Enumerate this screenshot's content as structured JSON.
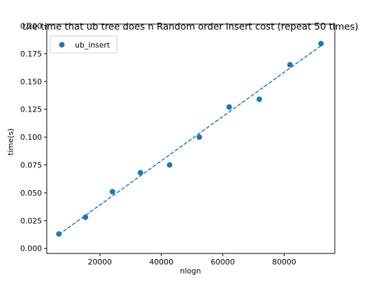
{
  "chart_data": {
    "type": "scatter",
    "title": "the time that ub tree does n Random order insert cost (repeat 50 times)",
    "xlabel": "nlogn",
    "ylabel": "time(s)",
    "xlim": [
      2700,
      96500
    ],
    "ylim": [
      -0.0045,
      0.2015
    ],
    "xticks": [
      20000,
      40000,
      60000,
      80000
    ],
    "xtick_labels": [
      "20000",
      "40000",
      "60000",
      "80000"
    ],
    "yticks": [
      0.0,
      0.025,
      0.05,
      0.075,
      0.1,
      0.125,
      0.15,
      0.175,
      0.2
    ],
    "ytick_labels": [
      "0.000",
      "0.025",
      "0.050",
      "0.075",
      "0.100",
      "0.125",
      "0.150",
      "0.175",
      "0.200"
    ],
    "grid": false,
    "legend": {
      "position": "top-left",
      "entries": [
        "ub_insert"
      ]
    },
    "series": [
      {
        "name": "ub_insert",
        "kind": "scatter",
        "color": "#1f77b4",
        "x": [
          6650,
          15300,
          24100,
          33200,
          42700,
          52400,
          62100,
          71900,
          81900,
          92000
        ],
        "y": [
          0.013,
          0.028,
          0.051,
          0.068,
          0.075,
          0.1,
          0.127,
          0.134,
          0.165,
          0.184
        ]
      }
    ],
    "fit_line": {
      "kind": "line",
      "style": "dashed",
      "color": "#1f77b4",
      "x": [
        6650,
        92000
      ],
      "y": [
        0.0125,
        0.182
      ]
    }
  }
}
